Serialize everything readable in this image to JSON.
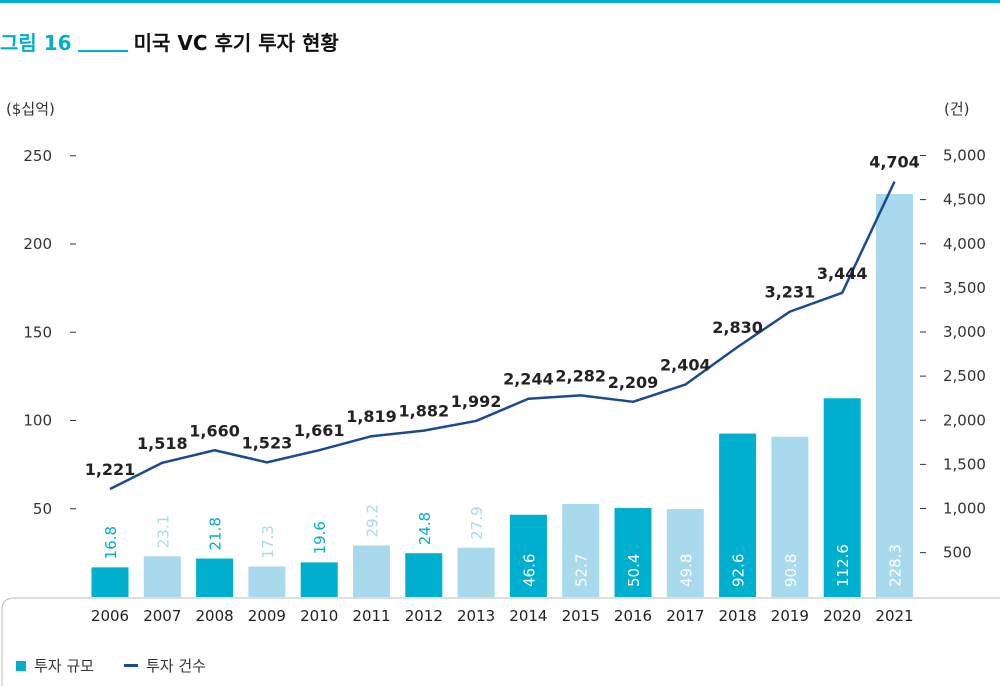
{
  "header": {
    "figure_label": "그림 16",
    "title": "미국 VC 후기 투자 현황"
  },
  "legend": {
    "bars": "투자 규모",
    "line": "투자 건수"
  },
  "colors": {
    "accent": "#00aecd",
    "bar_dark": "#00aecd",
    "bar_light": "#a9d9ec",
    "line": "#1a4a8f"
  },
  "chart_data": {
    "type": "bar",
    "title": "미국 VC 후기 투자 현황",
    "categories": [
      "2006",
      "2007",
      "2008",
      "2009",
      "2010",
      "2011",
      "2012",
      "2013",
      "2014",
      "2015",
      "2016",
      "2017",
      "2018",
      "2019",
      "2020",
      "2021"
    ],
    "series": [
      {
        "name": "투자 규모",
        "type": "bar",
        "axis": "left",
        "values": [
          16.8,
          23.1,
          21.8,
          17.3,
          19.6,
          29.2,
          24.8,
          27.9,
          46.6,
          52.7,
          50.4,
          49.8,
          92.6,
          90.8,
          112.6,
          228.3
        ],
        "labels": [
          "16.8",
          "23.1",
          "21.8",
          "17.3",
          "19.6",
          "29.2",
          "24.8",
          "27.9",
          "46.6",
          "52.7",
          "50.4",
          "49.8",
          "92.6",
          "90.8",
          "112.6",
          "228.3"
        ],
        "shade": [
          "dark",
          "light",
          "dark",
          "light",
          "dark",
          "light",
          "dark",
          "light",
          "dark",
          "light",
          "dark",
          "light",
          "dark",
          "light",
          "dark",
          "light"
        ]
      },
      {
        "name": "투자 건수",
        "type": "line",
        "axis": "right",
        "values": [
          1221,
          1518,
          1660,
          1523,
          1661,
          1819,
          1882,
          1992,
          2244,
          2282,
          2209,
          2404,
          2830,
          3231,
          3444,
          4704
        ],
        "labels": [
          "1,221",
          "1,518",
          "1,660",
          "1,523",
          "1,661",
          "1,819",
          "1,882",
          "1,992",
          "2,244",
          "2,282",
          "2,209",
          "2,404",
          "2,830",
          "3,231",
          "3,444",
          "4,704"
        ]
      }
    ],
    "left_axis": {
      "unit_label": "($십억)",
      "ylim": [
        0,
        250
      ],
      "ticks": [
        "50",
        "100",
        "150",
        "200",
        "250"
      ],
      "tick_values": [
        50,
        100,
        150,
        200,
        250
      ]
    },
    "right_axis": {
      "unit_label": "(건)",
      "ylim": [
        0,
        5000
      ],
      "ticks": [
        "500",
        "1,000",
        "1,500",
        "2,000",
        "2,500",
        "3,000",
        "3,500",
        "4,000",
        "4,500",
        "5,000"
      ],
      "tick_values": [
        500,
        1000,
        1500,
        2000,
        2500,
        3000,
        3500,
        4000,
        4500,
        5000
      ]
    },
    "grid": false,
    "legend_position": "bottom-left"
  }
}
